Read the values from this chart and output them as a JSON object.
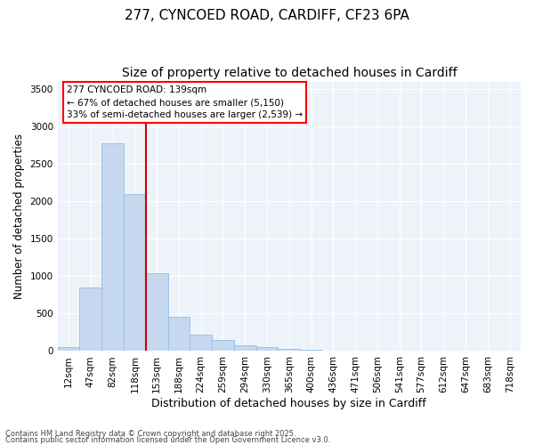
{
  "title_line1": "277, CYNCOED ROAD, CARDIFF, CF23 6PA",
  "title_line2": "Size of property relative to detached houses in Cardiff",
  "xlabel": "Distribution of detached houses by size in Cardiff",
  "ylabel": "Number of detached properties",
  "categories": [
    "12sqm",
    "47sqm",
    "82sqm",
    "118sqm",
    "153sqm",
    "188sqm",
    "224sqm",
    "259sqm",
    "294sqm",
    "330sqm",
    "365sqm",
    "400sqm",
    "436sqm",
    "471sqm",
    "506sqm",
    "541sqm",
    "577sqm",
    "612sqm",
    "647sqm",
    "683sqm",
    "718sqm"
  ],
  "values": [
    55,
    855,
    2780,
    2100,
    1040,
    460,
    215,
    150,
    75,
    55,
    30,
    18,
    8,
    5,
    3,
    2,
    1,
    0,
    0,
    0,
    0
  ],
  "bar_color": "#c5d8f0",
  "bar_edge_color": "#94bde0",
  "vline_color": "#cc0000",
  "vline_x_index": 4,
  "annotation_text": "277 CYNCOED ROAD: 139sqm\n← 67% of detached houses are smaller (5,150)\n33% of semi-detached houses are larger (2,539) →",
  "ylim": [
    0,
    3600
  ],
  "yticks": [
    0,
    500,
    1000,
    1500,
    2000,
    2500,
    3000,
    3500
  ],
  "figure_bg": "#ffffff",
  "plot_bg": "#eef3fa",
  "grid_color": "#ffffff",
  "footer_line1": "Contains HM Land Registry data © Crown copyright and database right 2025.",
  "footer_line2": "Contains public sector information licensed under the Open Government Licence v3.0.",
  "title1_fontsize": 11,
  "title2_fontsize": 10,
  "tick_fontsize": 7.5,
  "ylabel_fontsize": 8.5,
  "xlabel_fontsize": 9,
  "annot_fontsize": 7.5,
  "footer_fontsize": 6
}
